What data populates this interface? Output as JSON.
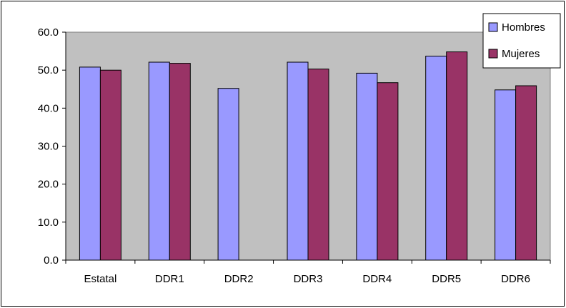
{
  "colors": {
    "plot_background": "#c0c0c0",
    "hombres": "#9999ff",
    "mujeres": "#993366",
    "border": "#000000"
  },
  "chart_data": {
    "type": "bar",
    "categories": [
      "Estatal",
      "DDR1",
      "DDR2",
      "DDR3",
      "DDR4",
      "DDR5",
      "DDR6"
    ],
    "series": [
      {
        "name": "Hombres",
        "values": [
          50.8,
          52.1,
          45.2,
          52.1,
          49.2,
          53.7,
          44.8
        ]
      },
      {
        "name": "Mujeres",
        "values": [
          50.0,
          51.8,
          null,
          50.3,
          46.7,
          54.8,
          45.9
        ]
      }
    ],
    "ylim": [
      0,
      60
    ],
    "y_ticks": [
      "0.0",
      "10.0",
      "20.0",
      "30.0",
      "40.0",
      "50.0",
      "60.0"
    ],
    "title": "",
    "xlabel": "",
    "ylabel": "",
    "grid": false,
    "legend_position": "top-right"
  }
}
